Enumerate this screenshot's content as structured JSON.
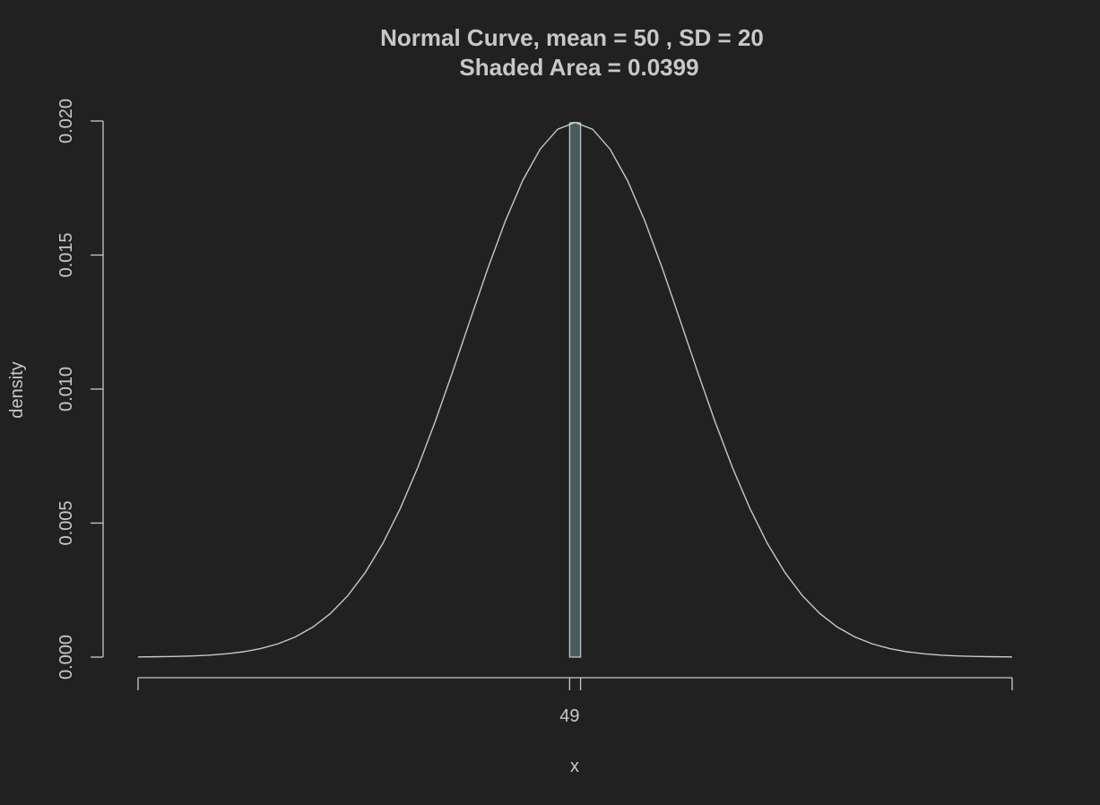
{
  "chart_data": {
    "type": "line",
    "title": "Normal Curve, mean =  50 , SD =  20",
    "subtitle": "Shaded Area =  0.0399",
    "xlabel": "x",
    "ylabel": "density",
    "mean": 50,
    "sd": 20,
    "xlim": [
      -30,
      130
    ],
    "ylim": [
      0,
      0.02
    ],
    "y_ticks": [
      "0.000",
      "0.005",
      "0.010",
      "0.015",
      "0.020"
    ],
    "y_tick_values": [
      0,
      0.005,
      0.01,
      0.015,
      0.02
    ],
    "x_tick_values": [
      -30,
      49,
      51,
      130
    ],
    "x_tick_labels": [
      {
        "value": 49,
        "label": "49"
      }
    ],
    "shaded_region": {
      "from": 49,
      "to": 51,
      "area": 0.0399
    },
    "grid": false,
    "colors": {
      "background": "#212121",
      "foreground": "#c8c8c8",
      "shade_fill": "#4a5a60",
      "shade_stroke": "#b8c8d0"
    }
  }
}
